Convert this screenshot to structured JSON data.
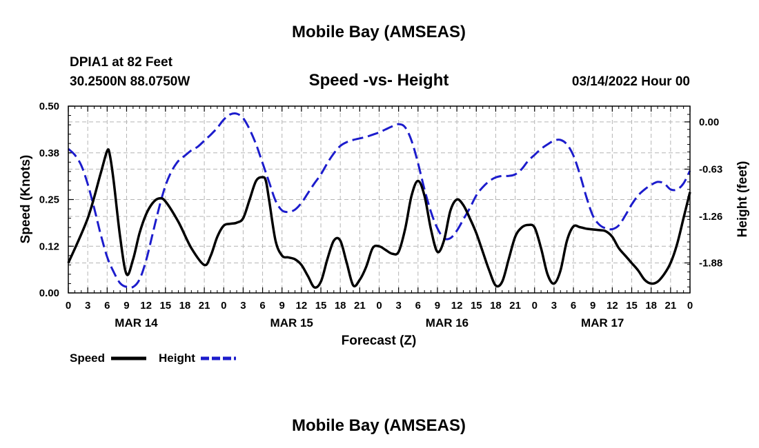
{
  "page": {
    "title_top": "Mobile Bay (AMSEAS)",
    "title_bottom": "Mobile Bay (AMSEAS)",
    "station_line": "DPIA1 at 82 Feet",
    "coords_line": "30.2500N  88.0750W",
    "date_line": "03/14/2022 Hour 00"
  },
  "chart_data": {
    "type": "line",
    "title": "Speed -vs- Height",
    "xlabel": "Forecast (Z)",
    "ylabel": "Speed (Knots)",
    "ylabel_right": "Height (feet)",
    "x_range": [
      0,
      96
    ],
    "ylim": [
      0,
      0.5
    ],
    "ylim_right": [
      -2.28,
      0.21
    ],
    "grid": true,
    "legend_position": "bottom-left",
    "y_ticks": [
      "0.00",
      "0.12",
      "0.25",
      "0.38",
      "0.50"
    ],
    "y_tick_values": [
      0,
      0.125,
      0.25,
      0.375,
      0.5
    ],
    "y_right_ticks": [
      "0.00",
      "-0.63",
      "-1.26",
      "-1.88"
    ],
    "y_right_tick_values": [
      0,
      -0.63,
      -1.26,
      -1.88
    ],
    "x_tick_labels": [
      "0",
      "3",
      "6",
      "9",
      "12",
      "15",
      "18",
      "21",
      "0",
      "3",
      "6",
      "9",
      "12",
      "15",
      "18",
      "21",
      "0",
      "3",
      "6",
      "9",
      "12",
      "15",
      "18",
      "21",
      "0",
      "3",
      "6",
      "9",
      "12",
      "15",
      "18",
      "21",
      "0"
    ],
    "x_tick_hours": [
      0,
      3,
      6,
      9,
      12,
      15,
      18,
      21,
      24,
      27,
      30,
      33,
      36,
      39,
      42,
      45,
      48,
      51,
      54,
      57,
      60,
      63,
      66,
      69,
      72,
      75,
      78,
      81,
      84,
      87,
      90,
      93,
      96
    ],
    "day_labels": [
      {
        "label": "MAR 14",
        "hour": 9
      },
      {
        "label": "MAR 15",
        "hour": 33
      },
      {
        "label": "MAR 16",
        "hour": 57
      },
      {
        "label": "MAR 17",
        "hour": 81
      }
    ],
    "series": [
      {
        "name": "Speed",
        "axis": "left",
        "color": "#000000",
        "dash": "solid",
        "x": [
          0,
          3,
          5,
          6,
          6.4,
          7,
          8,
          9,
          10,
          11,
          12,
          13,
          14,
          15,
          17,
          19,
          21,
          22,
          23,
          24,
          25,
          26,
          27,
          28,
          29,
          30,
          30.5,
          31,
          32,
          33,
          34,
          35,
          36,
          37,
          38,
          39,
          40,
          41,
          42,
          43,
          44,
          45,
          46,
          47,
          48,
          49,
          50,
          51,
          52,
          53,
          54,
          55,
          56,
          57,
          58,
          59,
          60,
          61,
          62,
          63,
          64,
          65,
          66,
          67,
          68,
          69,
          70,
          71,
          72,
          73,
          74,
          75,
          76,
          77,
          78,
          79,
          80,
          81,
          82,
          83,
          84,
          85,
          86,
          87,
          88,
          89,
          90,
          91,
          92,
          93,
          94,
          95,
          96
        ],
        "values": [
          0.08,
          0.2,
          0.32,
          0.38,
          0.37,
          0.3,
          0.15,
          0.05,
          0.09,
          0.16,
          0.21,
          0.24,
          0.253,
          0.245,
          0.19,
          0.12,
          0.075,
          0.1,
          0.15,
          0.18,
          0.185,
          0.188,
          0.2,
          0.25,
          0.3,
          0.31,
          0.3,
          0.25,
          0.14,
          0.1,
          0.095,
          0.09,
          0.075,
          0.045,
          0.015,
          0.03,
          0.09,
          0.14,
          0.14,
          0.08,
          0.02,
          0.035,
          0.07,
          0.12,
          0.125,
          0.115,
          0.105,
          0.11,
          0.17,
          0.26,
          0.3,
          0.26,
          0.17,
          0.11,
          0.14,
          0.22,
          0.25,
          0.235,
          0.2,
          0.16,
          0.11,
          0.06,
          0.02,
          0.03,
          0.09,
          0.15,
          0.175,
          0.182,
          0.175,
          0.12,
          0.05,
          0.025,
          0.06,
          0.14,
          0.178,
          0.176,
          0.172,
          0.17,
          0.168,
          0.165,
          0.15,
          0.12,
          0.1,
          0.08,
          0.06,
          0.035,
          0.025,
          0.03,
          0.05,
          0.08,
          0.13,
          0.2,
          0.27
        ]
      },
      {
        "name": "Height",
        "axis": "right",
        "color": "#1c1ccc",
        "dash": "dashed",
        "x": [
          0,
          1,
          2,
          3,
          4,
          5,
          6,
          7,
          8,
          9,
          10,
          11,
          12,
          13,
          14,
          15,
          16,
          17,
          18,
          19,
          20,
          21,
          22,
          23,
          24,
          25,
          26,
          27,
          28,
          29,
          30,
          31,
          32,
          33,
          34,
          35,
          36,
          37,
          38,
          39,
          40,
          41,
          42,
          43,
          44,
          45,
          46,
          47,
          48,
          49,
          50,
          51,
          52,
          53,
          54,
          55,
          56,
          57,
          58,
          59,
          60,
          61,
          62,
          63,
          64,
          65,
          66,
          67,
          68,
          69,
          70,
          71,
          72,
          73,
          74,
          75,
          76,
          77,
          78,
          79,
          80,
          81,
          82,
          83,
          84,
          85,
          86,
          87,
          88,
          89,
          90,
          91,
          92,
          93,
          94,
          95,
          96
        ],
        "values": [
          -0.36,
          -0.44,
          -0.58,
          -0.83,
          -1.15,
          -1.5,
          -1.8,
          -2.0,
          -2.15,
          -2.2,
          -2.2,
          -2.1,
          -1.85,
          -1.5,
          -1.15,
          -0.85,
          -0.65,
          -0.52,
          -0.45,
          -0.38,
          -0.33,
          -0.25,
          -0.17,
          -0.08,
          0.03,
          0.1,
          0.11,
          0.05,
          -0.1,
          -0.3,
          -0.55,
          -0.8,
          -1.05,
          -1.18,
          -1.2,
          -1.17,
          -1.08,
          -0.95,
          -0.82,
          -0.7,
          -0.55,
          -0.42,
          -0.32,
          -0.27,
          -0.24,
          -0.22,
          -0.2,
          -0.17,
          -0.14,
          -0.1,
          -0.06,
          -0.03,
          -0.07,
          -0.25,
          -0.55,
          -0.9,
          -1.2,
          -1.42,
          -1.55,
          -1.55,
          -1.45,
          -1.3,
          -1.15,
          -0.98,
          -0.87,
          -0.79,
          -0.74,
          -0.72,
          -0.72,
          -0.7,
          -0.63,
          -0.52,
          -0.44,
          -0.36,
          -0.3,
          -0.25,
          -0.24,
          -0.3,
          -0.45,
          -0.7,
          -1.0,
          -1.25,
          -1.37,
          -1.42,
          -1.43,
          -1.38,
          -1.25,
          -1.1,
          -0.98,
          -0.9,
          -0.84,
          -0.8,
          -0.82,
          -0.9,
          -0.9,
          -0.82,
          -0.65
        ]
      }
    ]
  }
}
